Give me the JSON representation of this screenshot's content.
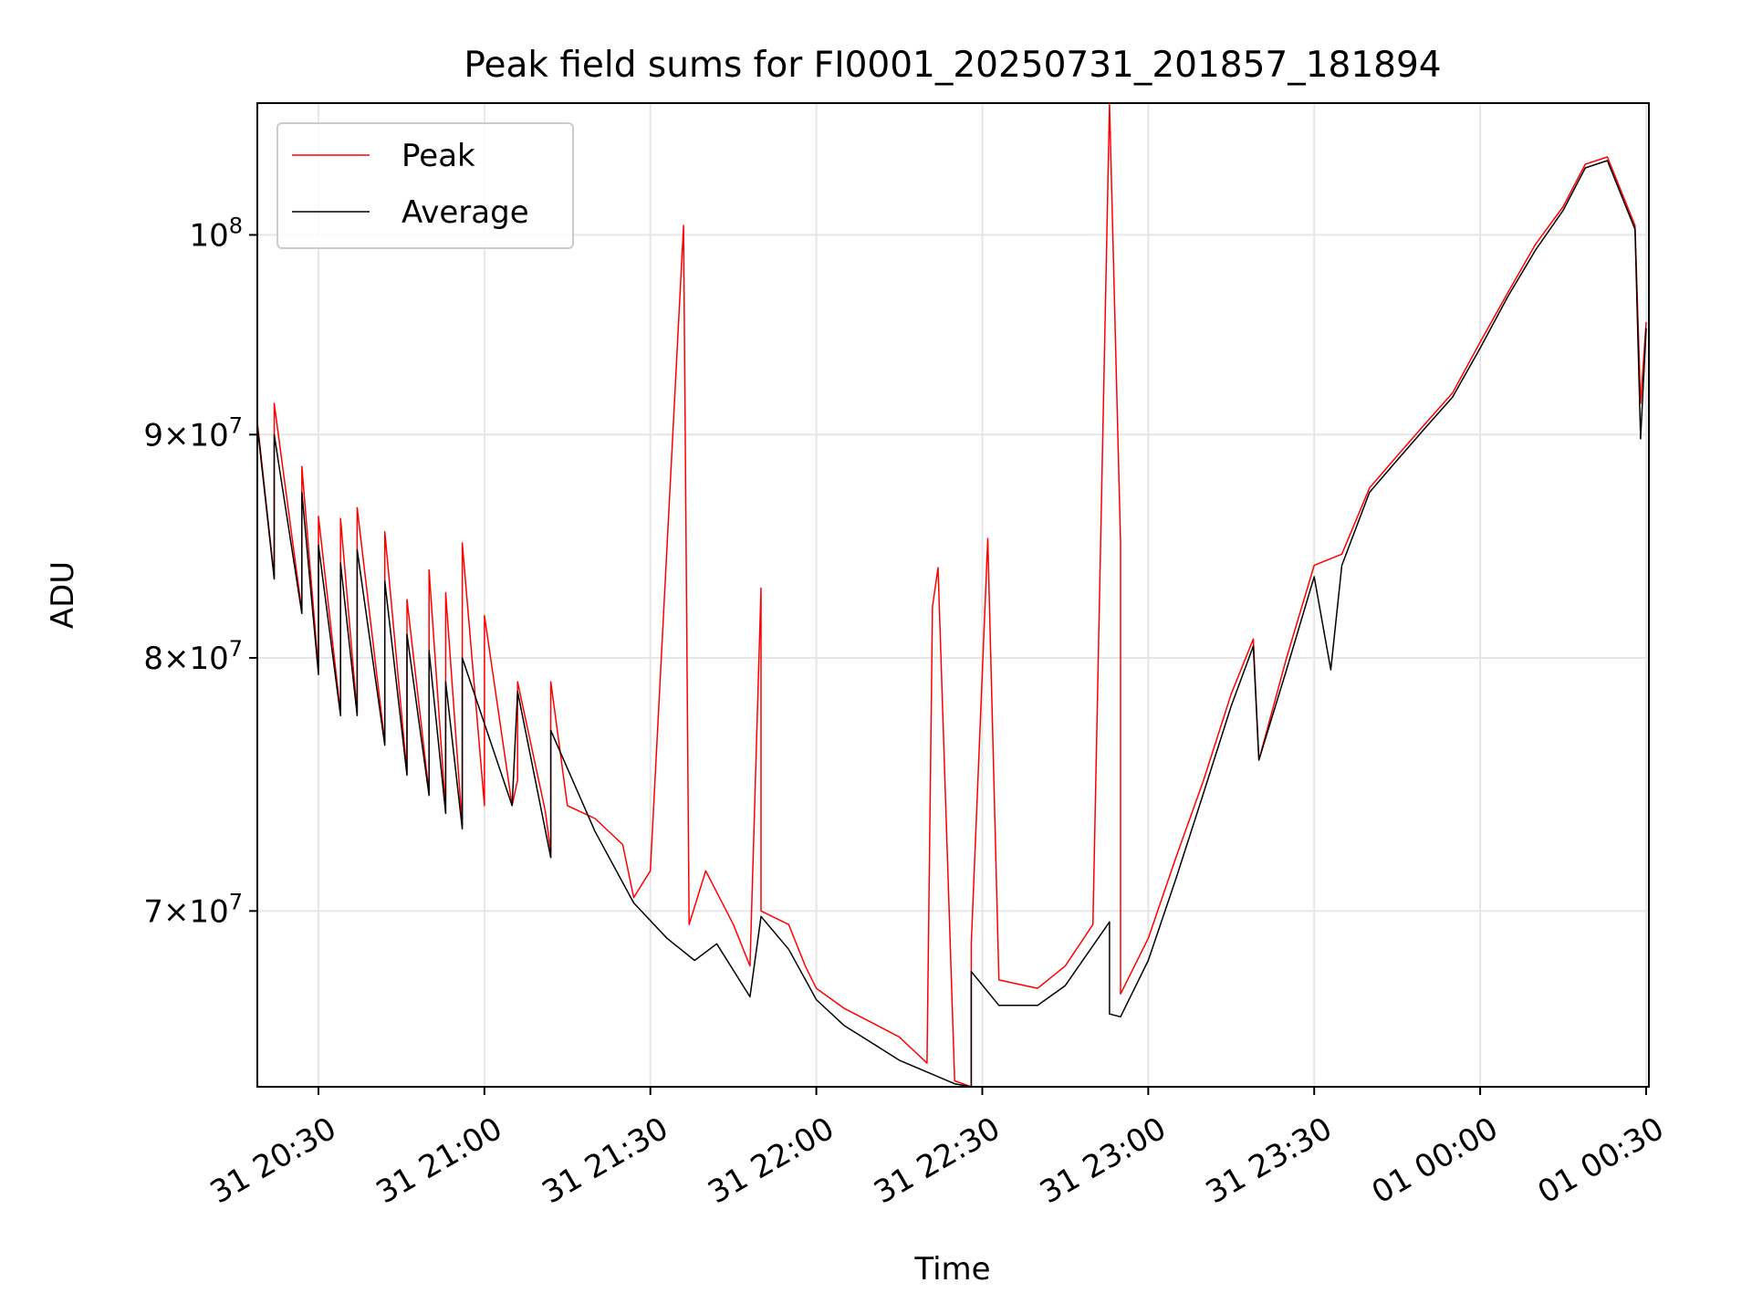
{
  "chart_data": {
    "type": "line",
    "title": "Peak field sums for FI0001_20250731_201857_181894",
    "xlabel": "Time",
    "ylabel": "ADU",
    "yscale": "log",
    "xlim": [
      "2025-07-31 20:18:57",
      "2025-08-01 00:30:30"
    ],
    "ylim": [
      63800000,
      107200000
    ],
    "x_ticks": [
      {
        "value": "2025-07-31 20:30",
        "label": "31 20:30"
      },
      {
        "value": "2025-07-31 21:00",
        "label": "31 21:00"
      },
      {
        "value": "2025-07-31 21:30",
        "label": "31 21:30"
      },
      {
        "value": "2025-07-31 22:00",
        "label": "31 22:00"
      },
      {
        "value": "2025-07-31 22:30",
        "label": "31 22:30"
      },
      {
        "value": "2025-07-31 23:00",
        "label": "31 23:00"
      },
      {
        "value": "2025-07-31 23:30",
        "label": "31 23:30"
      },
      {
        "value": "2025-08-01 00:00",
        "label": "01 00:00"
      },
      {
        "value": "2025-08-01 00:30",
        "label": "01 00:30"
      }
    ],
    "y_ticks": [
      {
        "value": 70000000,
        "mantissa": "7",
        "exponent": "7"
      },
      {
        "value": 80000000,
        "mantissa": "8",
        "exponent": "7"
      },
      {
        "value": 90000000,
        "mantissa": "9",
        "exponent": "7"
      },
      {
        "value": 100000000,
        "mantissa": "",
        "exponent": "8"
      }
    ],
    "grid": true,
    "legend_position": "top-left",
    "series": [
      {
        "name": "Peak",
        "color": "#ff0000",
        "points": [
          [
            "2025-07-31 20:19",
            90500000
          ],
          [
            "2025-07-31 20:22",
            83500000
          ],
          [
            "2025-07-31 20:22",
            91500000
          ],
          [
            "2025-07-31 20:27",
            82000000
          ],
          [
            "2025-07-31 20:27",
            88500000
          ],
          [
            "2025-07-31 20:30",
            79500000
          ],
          [
            "2025-07-31 20:30",
            86200000
          ],
          [
            "2025-07-31 20:34",
            77700000
          ],
          [
            "2025-07-31 20:34",
            86100000
          ],
          [
            "2025-07-31 20:37",
            77700000
          ],
          [
            "2025-07-31 20:37",
            86600000
          ],
          [
            "2025-07-31 20:42",
            76500000
          ],
          [
            "2025-07-31 20:42",
            85500000
          ],
          [
            "2025-07-31 20:46",
            75300000
          ],
          [
            "2025-07-31 20:46",
            82500000
          ],
          [
            "2025-07-31 20:50",
            74500000
          ],
          [
            "2025-07-31 20:50",
            83800000
          ],
          [
            "2025-07-31 20:53",
            73800000
          ],
          [
            "2025-07-31 20:53",
            82800000
          ],
          [
            "2025-07-31 20:56",
            73200000
          ],
          [
            "2025-07-31 20:56",
            85000000
          ],
          [
            "2025-07-31 21:00",
            74000000
          ],
          [
            "2025-07-31 21:00",
            81800000
          ],
          [
            "2025-07-31 21:05",
            74000000
          ],
          [
            "2025-07-31 21:06",
            75000000
          ],
          [
            "2025-07-31 21:06",
            79000000
          ],
          [
            "2025-07-31 21:11",
            73800000
          ],
          [
            "2025-07-31 21:12",
            72200000
          ],
          [
            "2025-07-31 21:12",
            79000000
          ],
          [
            "2025-07-31 21:15",
            74000000
          ],
          [
            "2025-07-31 21:20",
            73500000
          ],
          [
            "2025-07-31 21:25",
            72500000
          ],
          [
            "2025-07-31 21:27",
            70500000
          ],
          [
            "2025-07-31 21:30",
            71500000
          ],
          [
            "2025-07-31 21:36",
            100500000
          ],
          [
            "2025-07-31 21:37",
            69500000
          ],
          [
            "2025-07-31 21:40",
            71500000
          ],
          [
            "2025-07-31 21:45",
            69500000
          ],
          [
            "2025-07-31 21:48",
            68000000
          ],
          [
            "2025-07-31 21:50",
            83000000
          ],
          [
            "2025-07-31 21:50",
            70000000
          ],
          [
            "2025-07-31 21:55",
            69500000
          ],
          [
            "2025-07-31 21:58",
            68000000
          ],
          [
            "2025-07-31 22:00",
            67200000
          ],
          [
            "2025-07-31 22:05",
            66500000
          ],
          [
            "2025-07-31 22:10",
            66000000
          ],
          [
            "2025-07-31 22:15",
            65500000
          ],
          [
            "2025-07-31 22:20",
            64600000
          ],
          [
            "2025-07-31 22:21",
            82200000
          ],
          [
            "2025-07-31 22:22",
            83900000
          ],
          [
            "2025-07-31 22:25",
            64000000
          ],
          [
            "2025-07-31 22:28",
            63800000
          ],
          [
            "2025-07-31 22:28",
            68800000
          ],
          [
            "2025-07-31 22:31",
            85200000
          ],
          [
            "2025-07-31 22:33",
            67500000
          ],
          [
            "2025-07-31 22:40",
            67200000
          ],
          [
            "2025-07-31 22:45",
            68000000
          ],
          [
            "2025-07-31 22:50",
            69500000
          ],
          [
            "2025-07-31 22:53",
            107200000
          ],
          [
            "2025-07-31 22:55",
            85000000
          ],
          [
            "2025-07-31 22:55",
            67000000
          ],
          [
            "2025-07-31 23:00",
            69000000
          ],
          [
            "2025-07-31 23:05",
            72000000
          ],
          [
            "2025-07-31 23:10",
            75000000
          ],
          [
            "2025-07-31 23:15",
            78500000
          ],
          [
            "2025-07-31 23:19",
            80800000
          ],
          [
            "2025-07-31 23:20",
            75800000
          ],
          [
            "2025-07-31 23:25",
            80000000
          ],
          [
            "2025-07-31 23:30",
            84000000
          ],
          [
            "2025-07-31 23:35",
            84500000
          ],
          [
            "2025-07-31 23:40",
            87500000
          ],
          [
            "2025-07-31 23:45",
            89000000
          ],
          [
            "2025-07-31 23:50",
            90500000
          ],
          [
            "2025-07-31 23:55",
            92000000
          ],
          [
            "2025-08-01 00:00",
            94500000
          ],
          [
            "2025-08-01 00:05",
            97000000
          ],
          [
            "2025-08-01 00:10",
            99500000
          ],
          [
            "2025-08-01 00:15",
            101500000
          ],
          [
            "2025-08-01 00:19",
            103800000
          ],
          [
            "2025-08-01 00:23",
            104200000
          ],
          [
            "2025-08-01 00:28",
            100500000
          ],
          [
            "2025-08-01 00:29",
            91500000
          ],
          [
            "2025-08-01 00:30",
            95500000
          ]
        ]
      },
      {
        "name": "Average",
        "color": "#000000",
        "points": [
          [
            "2025-07-31 20:19",
            90300000
          ],
          [
            "2025-07-31 20:22",
            83400000
          ],
          [
            "2025-07-31 20:22",
            90000000
          ],
          [
            "2025-07-31 20:27",
            81900000
          ],
          [
            "2025-07-31 20:27",
            87300000
          ],
          [
            "2025-07-31 20:30",
            79300000
          ],
          [
            "2025-07-31 20:30",
            84900000
          ],
          [
            "2025-07-31 20:34",
            77600000
          ],
          [
            "2025-07-31 20:34",
            84100000
          ],
          [
            "2025-07-31 20:37",
            77600000
          ],
          [
            "2025-07-31 20:37",
            84700000
          ],
          [
            "2025-07-31 20:42",
            76400000
          ],
          [
            "2025-07-31 20:42",
            83300000
          ],
          [
            "2025-07-31 20:46",
            75200000
          ],
          [
            "2025-07-31 20:46",
            81000000
          ],
          [
            "2025-07-31 20:50",
            74400000
          ],
          [
            "2025-07-31 20:50",
            80300000
          ],
          [
            "2025-07-31 20:53",
            73700000
          ],
          [
            "2025-07-31 20:53",
            79000000
          ],
          [
            "2025-07-31 20:56",
            73100000
          ],
          [
            "2025-07-31 20:56",
            80000000
          ],
          [
            "2025-07-31 21:05",
            74000000
          ],
          [
            "2025-07-31 21:06",
            78600000
          ],
          [
            "2025-07-31 21:12",
            72000000
          ],
          [
            "2025-07-31 21:12",
            77000000
          ],
          [
            "2025-07-31 21:20",
            73000000
          ],
          [
            "2025-07-31 21:27",
            70300000
          ],
          [
            "2025-07-31 21:33",
            69000000
          ],
          [
            "2025-07-31 21:38",
            68200000
          ],
          [
            "2025-07-31 21:42",
            68800000
          ],
          [
            "2025-07-31 21:48",
            66900000
          ],
          [
            "2025-07-31 21:50",
            69800000
          ],
          [
            "2025-07-31 21:55",
            68600000
          ],
          [
            "2025-07-31 22:00",
            66800000
          ],
          [
            "2025-07-31 22:05",
            65900000
          ],
          [
            "2025-07-31 22:10",
            65300000
          ],
          [
            "2025-07-31 22:15",
            64700000
          ],
          [
            "2025-07-31 22:20",
            64300000
          ],
          [
            "2025-07-31 22:25",
            63900000
          ],
          [
            "2025-07-31 22:28",
            63800000
          ],
          [
            "2025-07-31 22:28",
            67800000
          ],
          [
            "2025-07-31 22:33",
            66600000
          ],
          [
            "2025-07-31 22:40",
            66600000
          ],
          [
            "2025-07-31 22:45",
            67300000
          ],
          [
            "2025-07-31 22:53",
            69600000
          ],
          [
            "2025-07-31 22:53",
            66300000
          ],
          [
            "2025-07-31 22:55",
            66200000
          ],
          [
            "2025-07-31 23:00",
            68200000
          ],
          [
            "2025-07-31 23:05",
            71200000
          ],
          [
            "2025-07-31 23:10",
            74500000
          ],
          [
            "2025-07-31 23:15",
            78000000
          ],
          [
            "2025-07-31 23:19",
            80500000
          ],
          [
            "2025-07-31 23:20",
            75800000
          ],
          [
            "2025-07-31 23:25",
            79500000
          ],
          [
            "2025-07-31 23:30",
            83500000
          ],
          [
            "2025-07-31 23:33",
            79500000
          ],
          [
            "2025-07-31 23:35",
            84000000
          ],
          [
            "2025-07-31 23:40",
            87300000
          ],
          [
            "2025-07-31 23:45",
            88800000
          ],
          [
            "2025-07-31 23:50",
            90300000
          ],
          [
            "2025-07-31 23:55",
            91800000
          ],
          [
            "2025-08-01 00:00",
            94200000
          ],
          [
            "2025-08-01 00:05",
            96800000
          ],
          [
            "2025-08-01 00:10",
            99200000
          ],
          [
            "2025-08-01 00:15",
            101300000
          ],
          [
            "2025-08-01 00:19",
            103600000
          ],
          [
            "2025-08-01 00:23",
            104000000
          ],
          [
            "2025-08-01 00:28",
            100300000
          ],
          [
            "2025-08-01 00:29",
            89800000
          ],
          [
            "2025-08-01 00:30",
            95200000
          ]
        ]
      }
    ]
  }
}
